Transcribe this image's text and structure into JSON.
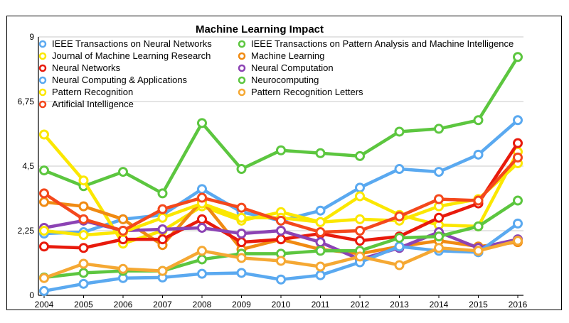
{
  "chart_data": {
    "type": "line",
    "title": "Machine Learning Impact",
    "xlabel": "",
    "ylabel": "",
    "x": [
      "2004",
      "2005",
      "2006",
      "2007",
      "2008",
      "2009",
      "2010",
      "2011",
      "2012",
      "2013",
      "2014",
      "2015",
      "2016"
    ],
    "ylim": [
      0,
      9
    ],
    "yticks": [
      "0",
      "2,25",
      "4,5",
      "6,75",
      "9"
    ],
    "legend_position": "top-left",
    "series": [
      {
        "name": "IEEE Transactions on Neural Networks",
        "color": "#5aa9f0",
        "values": [
          2.15,
          2.2,
          2.65,
          2.8,
          3.7,
          2.9,
          2.6,
          2.95,
          3.75,
          4.4,
          4.3,
          4.9,
          6.1
        ]
      },
      {
        "name": "IEEE Transactions on Pattern Analysis and Machine Intelligence",
        "color": "#5cc63f",
        "values": [
          4.35,
          3.8,
          4.3,
          3.55,
          6.0,
          4.4,
          5.05,
          4.95,
          4.85,
          5.7,
          5.8,
          6.1,
          8.3
        ]
      },
      {
        "name": "Journal of Machine Learning Research",
        "color": "#fbe700",
        "values": [
          5.6,
          4.0,
          1.8,
          2.25,
          3.1,
          2.6,
          2.9,
          2.55,
          3.45,
          2.8,
          2.45,
          2.4,
          5.0
        ]
      },
      {
        "name": "Machine Learning",
        "color": "#f08a12",
        "values": [
          3.25,
          3.1,
          2.65,
          1.75,
          3.3,
          1.6,
          1.95,
          1.6,
          1.45,
          1.7,
          1.9,
          1.7,
          1.85
        ]
      },
      {
        "name": "Neural Networks",
        "color": "#e81a0c",
        "values": [
          1.7,
          1.65,
          1.95,
          1.95,
          2.65,
          1.85,
          1.95,
          2.15,
          1.9,
          2.05,
          2.7,
          3.2,
          5.3
        ]
      },
      {
        "name": "Neural Computation",
        "color": "#8c43b4",
        "values": [
          2.35,
          2.6,
          2.25,
          2.3,
          2.35,
          2.15,
          2.25,
          1.85,
          1.25,
          1.65,
          2.2,
          1.65,
          1.95
        ]
      },
      {
        "name": "Neural Computing & Applications",
        "color": "#5aa9f0",
        "values": [
          0.15,
          0.4,
          0.6,
          0.62,
          0.75,
          0.78,
          0.55,
          0.7,
          1.15,
          1.7,
          1.55,
          1.5,
          2.5
        ]
      },
      {
        "name": "Neurocomputing",
        "color": "#5cc63f",
        "values": [
          0.62,
          0.78,
          0.85,
          0.85,
          1.25,
          1.45,
          1.45,
          1.55,
          1.55,
          2.0,
          2.05,
          2.4,
          3.3
        ]
      },
      {
        "name": "Pattern Recognition",
        "color": "#fbe700",
        "values": [
          2.25,
          2.1,
          2.2,
          2.7,
          3.2,
          2.7,
          2.7,
          2.55,
          2.65,
          2.6,
          3.1,
          3.35,
          4.6
        ]
      },
      {
        "name": "Pattern Recognition Letters",
        "color": "#f5a833",
        "values": [
          0.6,
          1.1,
          0.92,
          0.85,
          1.55,
          1.3,
          1.2,
          1.0,
          1.35,
          1.05,
          1.65,
          1.55,
          1.9
        ]
      },
      {
        "name": "Artificial Intelligence",
        "color": "#f4481c",
        "values": [
          3.55,
          2.65,
          2.25,
          3.0,
          3.4,
          3.05,
          2.6,
          2.2,
          2.25,
          2.75,
          3.35,
          3.3,
          4.8
        ]
      }
    ]
  }
}
